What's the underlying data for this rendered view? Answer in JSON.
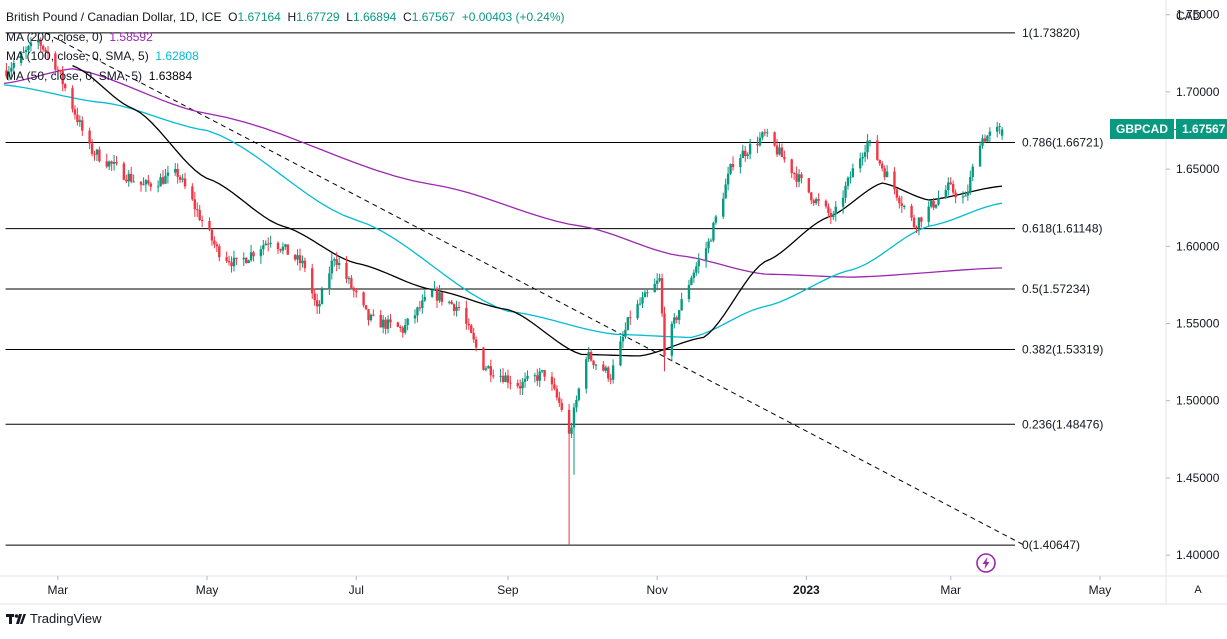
{
  "header": {
    "symbol_title": "British Pound / Canadian Dollar, 1D, ICE",
    "ohlc": {
      "o_label": "O",
      "o": "1.67164",
      "h_label": "H",
      "h": "1.67729",
      "l_label": "L",
      "l": "1.66894",
      "c_label": "C",
      "c": "1.67567",
      "change": "+0.00403 (+0.24%)"
    },
    "ma_lines": [
      {
        "label": "MA (200, close, 0)",
        "value": "1.58592",
        "color": "#9c27b0"
      },
      {
        "label": "MA (100, close, 0, SMA, 5)",
        "value": "1.62808",
        "color": "#00bcd4"
      },
      {
        "label": "MA (50, close, 0, SMA, 5)",
        "value": "1.63884",
        "color": "#000000"
      }
    ]
  },
  "currency_label": "CAD",
  "price_badge": {
    "symbol": "GBPCAD",
    "price": "1.67567"
  },
  "footer": {
    "brand": "TradingView"
  },
  "axis_button": "A",
  "colors": {
    "up": "#089981",
    "down": "#f23645",
    "fib": "#000000",
    "ma200": "#9c27b0",
    "ma100": "#00bcd4",
    "ma50": "#000000",
    "trend": "#000000"
  },
  "chart_data": {
    "type": "candlestick",
    "y_ticks": [
      "1.75000",
      "1.70000",
      "1.65000",
      "1.60000",
      "1.55000",
      "1.50000",
      "1.45000",
      "1.40000"
    ],
    "y_tick_values": [
      1.75,
      1.7,
      1.65,
      1.6,
      1.55,
      1.5,
      1.45,
      1.4
    ],
    "ylim": [
      1.3865,
      1.7595
    ],
    "x_ticks": [
      "Mar",
      "May",
      "Jul",
      "Sep",
      "Nov",
      "2023",
      "Mar",
      "May"
    ],
    "x_tick_dates": [
      "2022-03-01",
      "2022-05-01",
      "2022-07-01",
      "2022-09-01",
      "2022-11-01",
      "2023-01-01",
      "2023-03-01",
      "2023-05-01"
    ],
    "x_range": [
      "2022-02-07",
      "2023-05-28"
    ],
    "fib_levels": [
      {
        "label": "1(1.73820)",
        "value": 1.7382
      },
      {
        "label": "0.786(1.66721)",
        "value": 1.66721
      },
      {
        "label": "0.618(1.61148)",
        "value": 1.61148
      },
      {
        "label": "0.5(1.57234)",
        "value": 1.57234
      },
      {
        "label": "0.382(1.53319)",
        "value": 1.53319
      },
      {
        "label": "0.236(1.48476)",
        "value": 1.48476
      },
      {
        "label": "0(1.40647)",
        "value": 1.40647
      }
    ],
    "fib_start_date": "2022-02-24",
    "trendline": {
      "start": [
        "2022-02-24",
        1.7382
      ],
      "end": [
        "2023-03-31",
        1.4065
      ]
    },
    "anchors": [
      [
        "2022-02-08",
        1.714
      ],
      [
        "2022-02-21",
        1.733
      ],
      [
        "2022-02-28",
        1.718
      ],
      [
        "2022-03-14",
        1.663
      ],
      [
        "2022-03-28",
        1.647
      ],
      [
        "2022-04-05",
        1.639
      ],
      [
        "2022-04-19",
        1.647
      ],
      [
        "2022-05-05",
        1.598
      ],
      [
        "2022-05-13",
        1.588
      ],
      [
        "2022-05-27",
        1.605
      ],
      [
        "2022-06-10",
        1.587
      ],
      [
        "2022-06-15",
        1.558
      ],
      [
        "2022-06-22",
        1.594
      ],
      [
        "2022-07-06",
        1.553
      ],
      [
        "2022-07-20",
        1.546
      ],
      [
        "2022-08-01",
        1.57
      ],
      [
        "2022-08-12",
        1.56
      ],
      [
        "2022-08-22",
        1.523
      ],
      [
        "2022-09-06",
        1.51
      ],
      [
        "2022-09-16",
        1.518
      ],
      [
        "2022-09-23",
        1.495
      ],
      [
        "2022-09-26",
        1.477
      ],
      [
        "2022-10-03",
        1.53
      ],
      [
        "2022-10-13",
        1.516
      ],
      [
        "2022-10-21",
        1.555
      ],
      [
        "2022-11-02",
        1.578
      ],
      [
        "2022-11-04",
        1.533
      ],
      [
        "2022-11-15",
        1.581
      ],
      [
        "2022-11-22",
        1.602
      ],
      [
        "2022-12-02",
        1.655
      ],
      [
        "2022-12-15",
        1.672
      ],
      [
        "2022-12-23",
        1.656
      ],
      [
        "2023-01-04",
        1.631
      ],
      [
        "2023-01-12",
        1.618
      ],
      [
        "2023-01-20",
        1.649
      ],
      [
        "2023-01-26",
        1.668
      ],
      [
        "2023-02-03",
        1.646
      ],
      [
        "2023-02-14",
        1.614
      ],
      [
        "2023-02-28",
        1.638
      ],
      [
        "2023-03-07",
        1.63
      ],
      [
        "2023-03-13",
        1.669
      ],
      [
        "2023-03-22",
        1.676
      ]
    ],
    "ma200": [
      [
        "2022-02-07",
        1.7055
      ],
      [
        "2022-03-07",
        1.715
      ],
      [
        "2022-05-01",
        1.686
      ],
      [
        "2022-08-01",
        1.64
      ],
      [
        "2022-10-01",
        1.613
      ],
      [
        "2022-11-10",
        1.594
      ],
      [
        "2022-12-15",
        1.582
      ],
      [
        "2023-01-20",
        1.58
      ],
      [
        "2023-03-22",
        1.586
      ]
    ],
    "ma100": [
      [
        "2022-02-07",
        1.7045
      ],
      [
        "2022-03-20",
        1.693
      ],
      [
        "2022-05-01",
        1.675
      ],
      [
        "2022-07-01",
        1.617
      ],
      [
        "2022-09-01",
        1.558
      ],
      [
        "2022-10-15",
        1.543
      ],
      [
        "2022-11-15",
        1.541
      ],
      [
        "2022-12-15",
        1.561
      ],
      [
        "2023-01-20",
        1.585
      ],
      [
        "2023-02-20",
        1.613
      ],
      [
        "2023-03-22",
        1.628
      ]
    ],
    "ma50": [
      [
        "2022-03-07",
        1.717
      ],
      [
        "2022-04-01",
        1.689
      ],
      [
        "2022-05-01",
        1.644
      ],
      [
        "2022-06-01",
        1.613
      ],
      [
        "2022-07-01",
        1.589
      ],
      [
        "2022-08-01",
        1.572
      ],
      [
        "2022-09-01",
        1.559
      ],
      [
        "2022-10-01",
        1.53
      ],
      [
        "2022-10-25",
        1.529
      ],
      [
        "2022-11-20",
        1.541
      ],
      [
        "2022-12-15",
        1.59
      ],
      [
        "2023-01-10",
        1.619
      ],
      [
        "2023-02-01",
        1.641
      ],
      [
        "2023-02-20",
        1.63
      ],
      [
        "2023-03-22",
        1.639
      ]
    ],
    "last_candle": {
      "date": "2023-03-22",
      "open": 1.67164,
      "high": 1.67729,
      "low": 1.66894,
      "close": 1.67567
    }
  }
}
